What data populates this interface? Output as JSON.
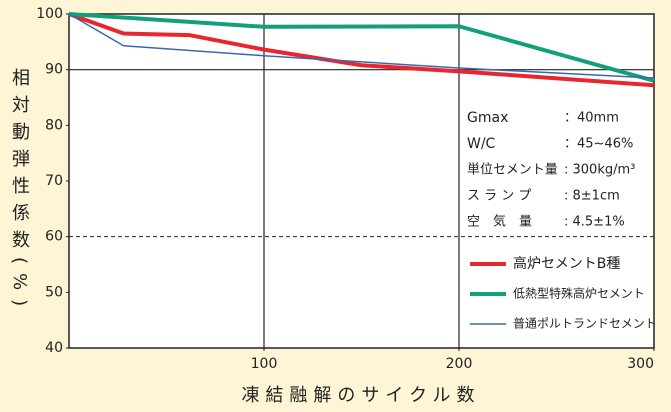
{
  "chart_data": {
    "type": "line",
    "ylabel": "相対動弾性係数(%)",
    "xlabel": "凍結融解のサイクル数",
    "xlim": [
      0,
      300
    ],
    "xticks": [
      100,
      200,
      300
    ],
    "ylim": [
      40,
      100
    ],
    "yticks": [
      40,
      50,
      60,
      70,
      80,
      90,
      100
    ],
    "grid": {
      "x": [
        100,
        200
      ],
      "y_solid": [
        90
      ],
      "y_dashed": [
        60
      ]
    },
    "series": [
      {
        "name": "高炉セメントB種",
        "color": "#e8262d",
        "width": 4,
        "x": [
          0,
          28,
          62,
          100,
          150,
          200,
          300
        ],
        "values": [
          100,
          96.5,
          96.2,
          93.6,
          90.8,
          89.7,
          87.2
        ]
      },
      {
        "name": "低熱型特殊高炉セメント",
        "color": "#12a07a",
        "width": 4,
        "x": [
          0,
          100,
          200,
          300
        ],
        "values": [
          100,
          97.7,
          97.8,
          88
        ]
      },
      {
        "name": "普通ポルトランドセメント",
        "color": "#3a66b0",
        "width": 1.5,
        "x": [
          0,
          28,
          100,
          200,
          300
        ],
        "values": [
          100,
          94.3,
          92.5,
          90.3,
          88.5
        ]
      }
    ],
    "annotations": [
      {
        "label": "Gmax",
        "value": "：40mm"
      },
      {
        "label": "W/C",
        "value": "：45~46%"
      },
      {
        "label": "単位セメント量",
        "value": ": 300kg/m³"
      },
      {
        "label": "ス ラ ン プ",
        "value": ": 8±1cm"
      },
      {
        "label": "空　気　量",
        "value": ": 4.5±1%"
      }
    ],
    "legend": "lower right"
  }
}
